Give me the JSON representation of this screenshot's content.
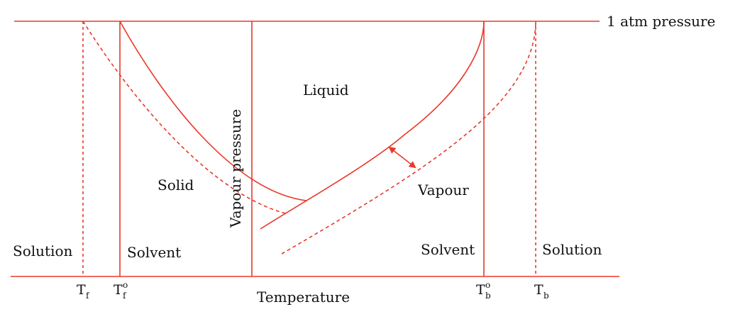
{
  "colors": {
    "line": "#e8392b",
    "text": "#111111",
    "background": "#ffffff"
  },
  "labels": {
    "pressure_line": "1 atm pressure",
    "liquid": "Liquid",
    "solid": "Solid",
    "vapour": "Vapour",
    "y_axis": "Vapour pressure",
    "x_axis": "Temperature",
    "solution_left": "Solution",
    "solvent_left": "Solvent",
    "solvent_right": "Solvent",
    "solution_right": "Solution"
  },
  "ticks": {
    "tf_main": "T",
    "tf_sub": "f",
    "tf0_main": "T",
    "tf0_sub": "f",
    "tf0_sup": "o",
    "tb0_main": "T",
    "tb0_sub": "b",
    "tb0_sup": "o",
    "tb_main": "T",
    "tb_sub": "b"
  }
}
